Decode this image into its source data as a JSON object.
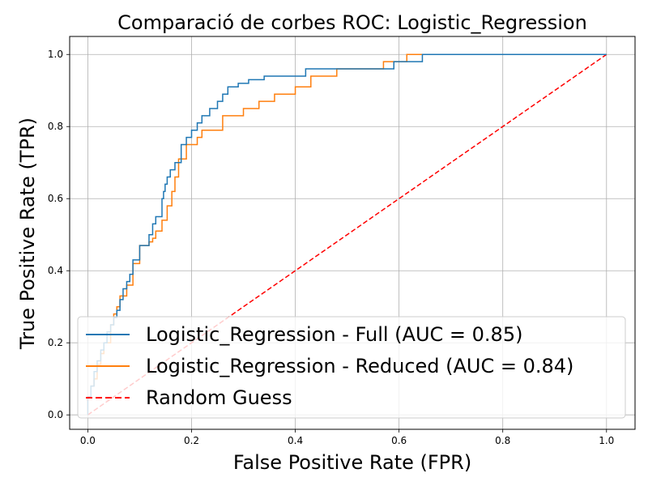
{
  "chart_data": {
    "type": "line",
    "title": "Comparació de corbes ROC: Logistic_Regression",
    "xlabel": "False Positive Rate (FPR)",
    "ylabel": "True Positive Rate (TPR)",
    "xlim": [
      -0.035,
      1.055
    ],
    "ylim": [
      -0.04,
      1.05
    ],
    "xticks": [
      "0.0",
      "0.2",
      "0.4",
      "0.6",
      "0.8",
      "1.0"
    ],
    "yticks": [
      "0.0",
      "0.2",
      "0.4",
      "0.6",
      "0.8",
      "1.0"
    ],
    "grid": true,
    "legend_position": "lower-right",
    "series": [
      {
        "name": "Logistic_Regression - Full (AUC = 0.85)",
        "color": "#1f77b4",
        "style": "solid",
        "x": [
          0,
          0,
          0.006,
          0.006,
          0.012,
          0.012,
          0.018,
          0.018,
          0.025,
          0.025,
          0.031,
          0.031,
          0.037,
          0.037,
          0.044,
          0.044,
          0.05,
          0.05,
          0.056,
          0.056,
          0.062,
          0.062,
          0.068,
          0.068,
          0.075,
          0.075,
          0.081,
          0.081,
          0.087,
          0.087,
          0.1,
          0.1,
          0.118,
          0.118,
          0.125,
          0.125,
          0.131,
          0.131,
          0.143,
          0.143,
          0.146,
          0.146,
          0.149,
          0.149,
          0.153,
          0.153,
          0.159,
          0.159,
          0.168,
          0.168,
          0.18,
          0.18,
          0.19,
          0.19,
          0.2,
          0.2,
          0.211,
          0.211,
          0.22,
          0.22,
          0.235,
          0.235,
          0.25,
          0.25,
          0.26,
          0.26,
          0.27,
          0.27,
          0.29,
          0.29,
          0.31,
          0.31,
          0.34,
          0.34,
          0.42,
          0.42,
          0.44,
          0.44,
          0.48,
          0.48,
          0.59,
          0.59,
          0.615,
          0.615,
          0.645,
          0.645,
          1.0
        ],
        "y": [
          0,
          0.05,
          0.05,
          0.08,
          0.08,
          0.12,
          0.12,
          0.15,
          0.15,
          0.18,
          0.18,
          0.2,
          0.2,
          0.23,
          0.23,
          0.25,
          0.25,
          0.27,
          0.27,
          0.29,
          0.29,
          0.32,
          0.32,
          0.35,
          0.35,
          0.37,
          0.37,
          0.39,
          0.39,
          0.43,
          0.43,
          0.47,
          0.47,
          0.5,
          0.5,
          0.53,
          0.53,
          0.55,
          0.55,
          0.6,
          0.6,
          0.62,
          0.62,
          0.64,
          0.64,
          0.66,
          0.66,
          0.68,
          0.68,
          0.7,
          0.7,
          0.75,
          0.75,
          0.77,
          0.77,
          0.79,
          0.79,
          0.81,
          0.81,
          0.83,
          0.83,
          0.85,
          0.85,
          0.87,
          0.87,
          0.89,
          0.89,
          0.91,
          0.91,
          0.92,
          0.92,
          0.93,
          0.93,
          0.94,
          0.94,
          0.96,
          0.96,
          0.96,
          0.96,
          0.96,
          0.96,
          0.98,
          0.98,
          0.98,
          0.98,
          1.0,
          1.0
        ]
      },
      {
        "name": "Logistic_Regression - Reduced (AUC = 0.84)",
        "color": "#ff7f0e",
        "style": "solid",
        "x": [
          0,
          0,
          0.006,
          0.006,
          0.012,
          0.012,
          0.018,
          0.018,
          0.025,
          0.025,
          0.031,
          0.031,
          0.044,
          0.044,
          0.05,
          0.05,
          0.056,
          0.056,
          0.062,
          0.062,
          0.075,
          0.075,
          0.087,
          0.087,
          0.1,
          0.1,
          0.118,
          0.118,
          0.125,
          0.125,
          0.131,
          0.131,
          0.143,
          0.143,
          0.153,
          0.153,
          0.162,
          0.162,
          0.168,
          0.168,
          0.175,
          0.175,
          0.19,
          0.19,
          0.211,
          0.211,
          0.22,
          0.22,
          0.26,
          0.26,
          0.3,
          0.3,
          0.33,
          0.33,
          0.36,
          0.36,
          0.4,
          0.4,
          0.43,
          0.43,
          0.48,
          0.48,
          0.57,
          0.57,
          0.615,
          0.615,
          1.0
        ],
        "y": [
          0,
          0.05,
          0.05,
          0.08,
          0.08,
          0.1,
          0.1,
          0.14,
          0.14,
          0.17,
          0.17,
          0.2,
          0.2,
          0.25,
          0.25,
          0.28,
          0.28,
          0.3,
          0.3,
          0.33,
          0.33,
          0.36,
          0.36,
          0.42,
          0.42,
          0.47,
          0.47,
          0.48,
          0.48,
          0.49,
          0.49,
          0.51,
          0.51,
          0.54,
          0.54,
          0.58,
          0.58,
          0.62,
          0.62,
          0.66,
          0.66,
          0.71,
          0.71,
          0.75,
          0.75,
          0.77,
          0.77,
          0.79,
          0.79,
          0.83,
          0.83,
          0.85,
          0.85,
          0.87,
          0.87,
          0.89,
          0.89,
          0.91,
          0.91,
          0.94,
          0.94,
          0.96,
          0.96,
          0.98,
          0.98,
          1.0,
          1.0
        ]
      },
      {
        "name": "Random Guess",
        "color": "#ff0000",
        "style": "dashed",
        "x": [
          0,
          1
        ],
        "y": [
          0,
          1
        ]
      }
    ]
  }
}
